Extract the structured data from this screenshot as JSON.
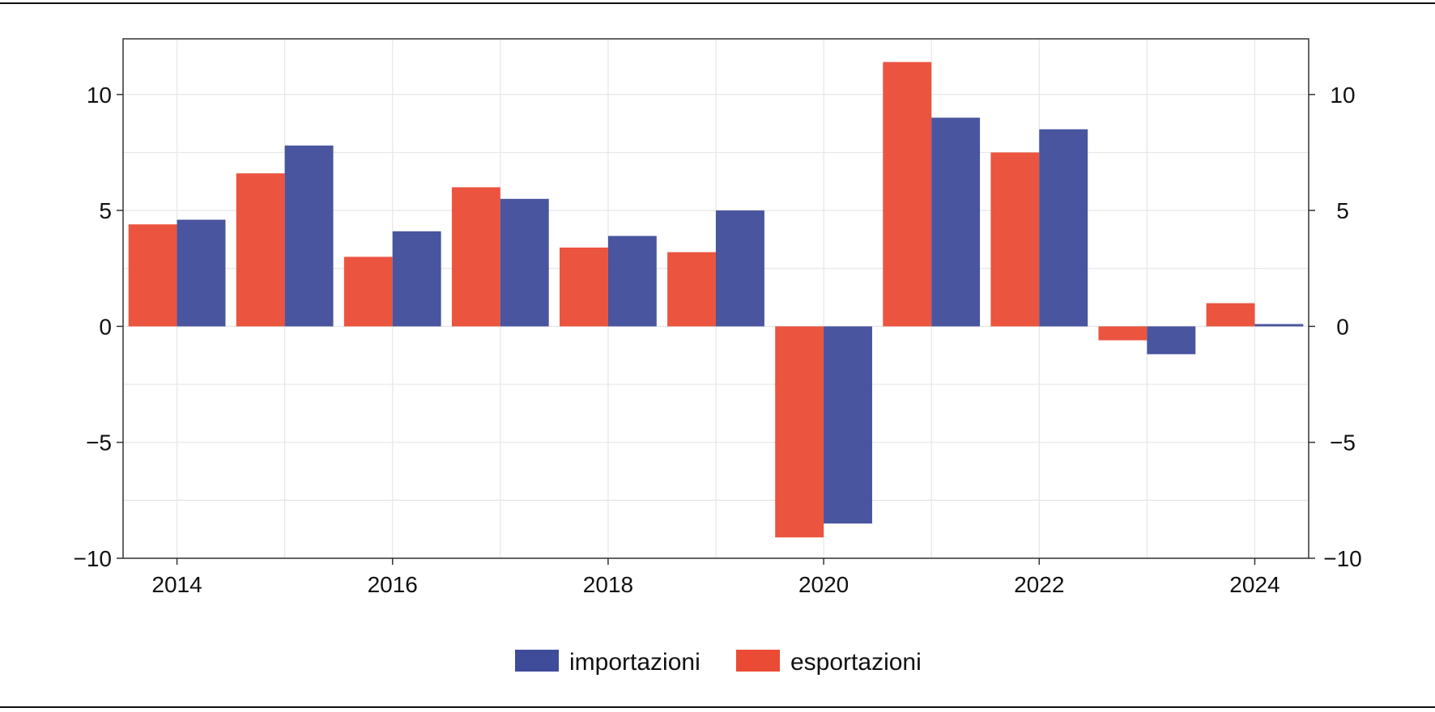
{
  "chart_data": {
    "type": "bar",
    "categories": [
      2014,
      2015,
      2016,
      2017,
      2018,
      2019,
      2020,
      2021,
      2022,
      2023,
      2024
    ],
    "x_tick_labels": [
      "2014",
      "2016",
      "2018",
      "2020",
      "2022",
      "2024"
    ],
    "y_tick_labels": [
      "10",
      "5",
      "0",
      "−5",
      "−10"
    ],
    "ylim": [
      -10,
      12.4
    ],
    "y_ticks": [
      10,
      5,
      0,
      -5,
      -10
    ],
    "y_axis_sides": "left and right",
    "grid": true,
    "legend_position": "bottom-center",
    "series": [
      {
        "name": "esportazioni",
        "color": "#ea4b35",
        "values": [
          4.4,
          6.6,
          3.0,
          6.0,
          3.4,
          3.2,
          -9.1,
          11.4,
          7.5,
          -0.6,
          1.0
        ]
      },
      {
        "name": "importazioni",
        "color": "#3f4c99",
        "values": [
          4.6,
          7.8,
          4.1,
          5.5,
          3.9,
          5.0,
          -8.5,
          9.0,
          8.5,
          -1.2,
          0.1
        ]
      }
    ],
    "legend": [
      "importazioni",
      "esportazioni"
    ]
  }
}
